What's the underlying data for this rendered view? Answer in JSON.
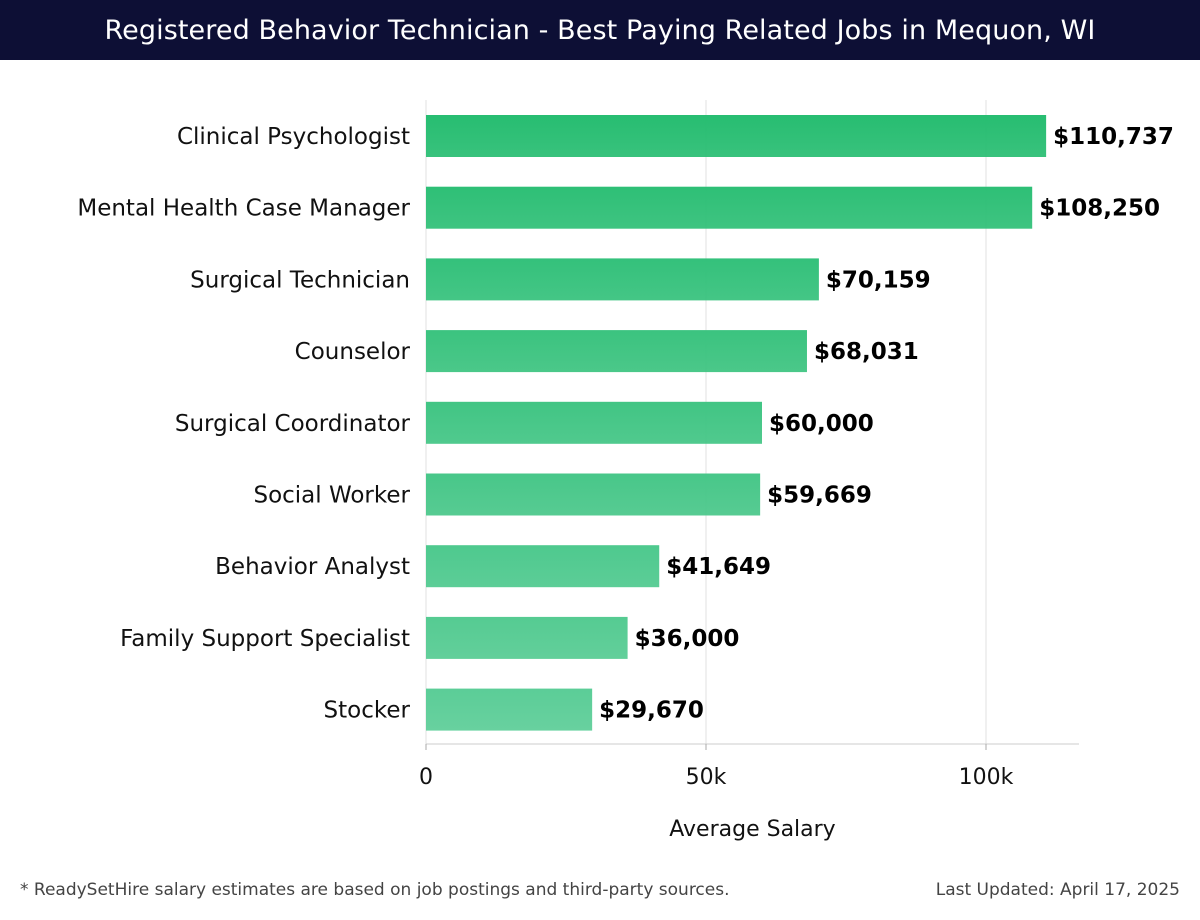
{
  "header": {
    "title": "Registered Behavior Technician - Best Paying Related Jobs in Mequon, WI"
  },
  "footer": {
    "note": "* ReadySetHire salary estimates are based on job postings and third-party sources.",
    "updated": "Last Updated: April 17, 2025"
  },
  "colors": {
    "header_bg": "#0d0f35",
    "bar_top": "#27bd71",
    "bar_bottom": "#5bcd97",
    "grid": "#e2e2e2"
  },
  "chart_data": {
    "type": "bar",
    "orientation": "horizontal",
    "categories": [
      "Clinical Psychologist",
      "Mental Health Case Manager",
      "Surgical Technician",
      "Counselor",
      "Surgical Coordinator",
      "Social Worker",
      "Behavior Analyst",
      "Family Support Specialist",
      "Stocker"
    ],
    "values": [
      110737,
      108250,
      70159,
      68031,
      60000,
      59669,
      41649,
      36000,
      29670
    ],
    "value_labels": [
      "$110,737",
      "$108,250",
      "$70,159",
      "$68,031",
      "$60,000",
      "$59,669",
      "$41,649",
      "$36,000",
      "$29,670"
    ],
    "xlabel": "Average Salary",
    "xlim": [
      0,
      116700
    ],
    "xticks": [
      0,
      50000,
      100000
    ],
    "xtick_labels": [
      "0",
      "50k",
      "100k"
    ],
    "grid": true
  }
}
